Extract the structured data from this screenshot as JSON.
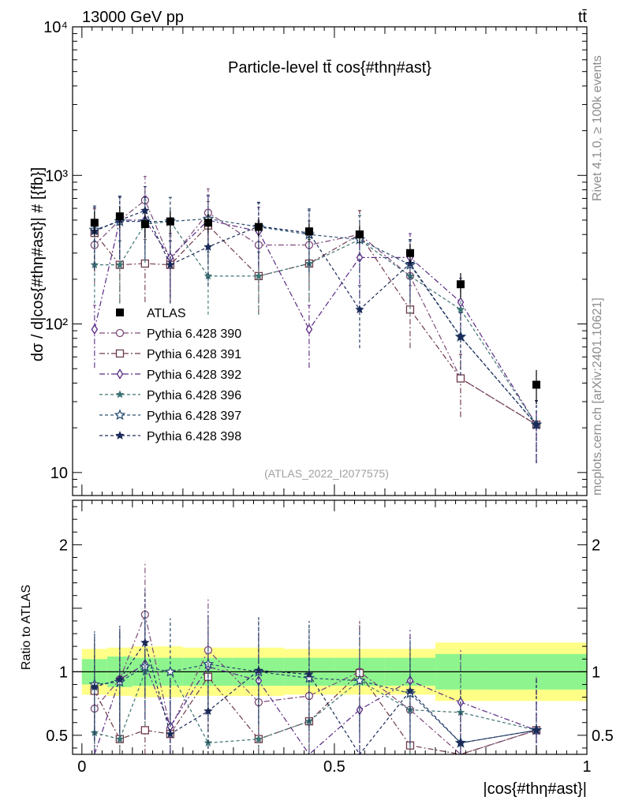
{
  "header": {
    "energy": "13000 GeV pp",
    "process": "tt̄"
  },
  "side": {
    "rivet": "Rivet 4.1.0, ≥ 100k events",
    "mcplots": "mcplots.cern.ch [arXiv:2401.10621]"
  },
  "chart_data": [
    {
      "type": "scatter",
      "panel": "main",
      "title": "Particle-level tt̄ cos{#thη#ast}",
      "analysis": "(ATLAS_2022_I2077575)",
      "xlabel": "|cos{#thη#ast}|",
      "ylabel": "dσ / d|cos{#thη#ast}| # [{fb}]",
      "yscale": "log",
      "xlim": [
        -0.0185,
        1.0
      ],
      "ylim": [
        7,
        10000
      ],
      "x_ticks": [
        "0",
        "0.5",
        "1"
      ],
      "y_ticks": [
        "10",
        "10²",
        "10³",
        "10⁴"
      ],
      "y_tick_values": [
        10,
        100,
        1000,
        10000
      ],
      "bin_edges": [
        0,
        0.05,
        0.1,
        0.15,
        0.2,
        0.3,
        0.4,
        0.5,
        0.6,
        0.7,
        0.8,
        1.0
      ],
      "x": [
        0.025,
        0.075,
        0.125,
        0.175,
        0.25,
        0.35,
        0.45,
        0.55,
        0.65,
        0.75,
        0.9
      ],
      "data": {
        "name": "ATLAS",
        "color": "#000000",
        "values": [
          480,
          530,
          470,
          490,
          480,
          450,
          420,
          400,
          300,
          185,
          39
        ],
        "stat_err": [
          90,
          90,
          90,
          90,
          70,
          60,
          55,
          55,
          45,
          35,
          10
        ]
      },
      "uncertainty_band_rel": {
        "inner": [
          0.1,
          0.12,
          0.11,
          0.11,
          0.11,
          0.11,
          0.11,
          0.11,
          0.11,
          0.14,
          0.14
        ],
        "outer": [
          0.18,
          0.19,
          0.2,
          0.2,
          0.19,
          0.19,
          0.18,
          0.18,
          0.18,
          0.23,
          0.23
        ]
      },
      "series": [
        {
          "name": "Pythia 6.428 390",
          "color": "#7b4a78",
          "marker": "circle-open",
          "dash": "7,3,2,3",
          "values": [
            340,
            500,
            680,
            270,
            560,
            340,
            340,
            400,
            210,
            43,
            21
          ]
        },
        {
          "name": "Pythia 6.428 391",
          "color": "#6e3a48",
          "marker": "square-open",
          "dash": "7,3,2,3",
          "values": [
            410,
            250,
            255,
            250,
            460,
            210,
            255,
            400,
            125,
            43,
            21
          ]
        },
        {
          "name": "Pythia 6.428 392",
          "color": "#5a2a84",
          "marker": "diamond-open",
          "dash": "7,3,2,3",
          "values": [
            92,
            500,
            500,
            280,
            500,
            420,
            92,
            280,
            280,
            140,
            21
          ]
        },
        {
          "name": "Pythia 6.428 396",
          "color": "#3e7272",
          "marker": "star-filled",
          "dash": "4,3",
          "values": [
            250,
            250,
            470,
            490,
            210,
            210,
            255,
            370,
            210,
            125,
            21
          ]
        },
        {
          "name": "Pythia 6.428 397",
          "color": "#2c4f74",
          "marker": "star-open",
          "dash": "4,3",
          "values": [
            430,
            490,
            490,
            490,
            510,
            450,
            400,
            370,
            250,
            82,
            21
          ]
        },
        {
          "name": "Pythia 6.428 398",
          "color": "#1a2a58",
          "marker": "triangle-down-filled",
          "dash": "4,3",
          "values": [
            420,
            500,
            580,
            250,
            330,
            455,
            410,
            125,
            255,
            82,
            21
          ]
        }
      ]
    },
    {
      "type": "scatter",
      "panel": "ratio",
      "xlabel": "|cos{#thη#ast}|",
      "ylabel": "Ratio to ATLAS",
      "ylim": [
        0.35,
        2.35
      ],
      "y_ticks": [
        "0.5",
        "1",
        "2"
      ],
      "y_tick_values": [
        0.5,
        1,
        2
      ],
      "reference": 1,
      "series": [
        {
          "name": "Pythia 6.428 390",
          "ratio": [
            0.71,
            0.94,
            1.45,
            0.55,
            1.17,
            0.76,
            0.81,
            1.0,
            0.7,
            0.23,
            0.54
          ]
        },
        {
          "name": "Pythia 6.428 391",
          "ratio": [
            0.85,
            0.47,
            0.54,
            0.51,
            0.96,
            0.47,
            0.61,
            0.99,
            0.42,
            0.23,
            0.54
          ]
        },
        {
          "name": "Pythia 6.428 392",
          "ratio": [
            0.19,
            0.94,
            1.06,
            0.57,
            1.04,
            0.93,
            0.22,
            0.7,
            0.93,
            0.76,
            0.54
          ]
        },
        {
          "name": "Pythia 6.428 396",
          "ratio": [
            0.52,
            0.47,
            1.0,
            1.0,
            0.44,
            0.47,
            0.61,
            0.93,
            0.7,
            0.68,
            0.54
          ]
        },
        {
          "name": "Pythia 6.428 397",
          "ratio": [
            0.9,
            0.92,
            1.04,
            1.0,
            1.06,
            1.0,
            0.95,
            0.93,
            0.83,
            0.44,
            0.54
          ]
        },
        {
          "name": "Pythia 6.428 398",
          "ratio": [
            0.88,
            0.94,
            1.23,
            0.51,
            0.69,
            1.01,
            0.98,
            0.31,
            0.85,
            0.44,
            0.54
          ]
        }
      ]
    }
  ]
}
